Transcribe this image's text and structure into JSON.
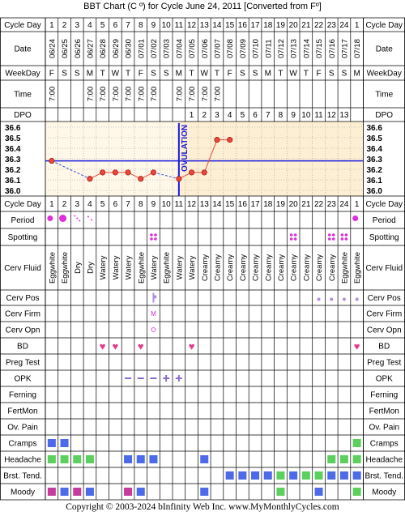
{
  "title": "BBT Chart (C º) for Cycle June 24, 2011  [Converted from Fº]",
  "copyright": "Copyright © 2003-2024 bInfinity Web Inc.     www.MyMonthlyCycles.com",
  "row_labels": {
    "cycle_day": "Cycle Day",
    "date": "Date",
    "weekday": "WeekDay",
    "time": "Time",
    "dpo": "DPO",
    "period": "Period",
    "spotting": "Spotting",
    "cerv_fluid": "Cerv Fluid",
    "cerv_pos": "Cerv Pos",
    "cerv_firm": "Cerv Firm",
    "cerv_opn": "Cerv Opn",
    "bd": "BD",
    "preg_test": "Preg Test",
    "opk": "OPK",
    "ferning": "Ferning",
    "fertmon": "FertMon",
    "ov_pain": "Ov. Pain",
    "cramps": "Cramps",
    "headache": "Headache",
    "brst_tend": "Brst. Tend.",
    "moody": "Moody"
  },
  "cycle_days": [
    "1",
    "2",
    "3",
    "4",
    "5",
    "6",
    "7",
    "8",
    "9",
    "10",
    "11",
    "12",
    "13",
    "14",
    "15",
    "16",
    "17",
    "18",
    "19",
    "20",
    "21",
    "22",
    "23",
    "24",
    "1"
  ],
  "dates": [
    "06/24",
    "06/25",
    "06/26",
    "06/27",
    "06/28",
    "06/29",
    "06/30",
    "07/01",
    "07/02",
    "07/03",
    "07/04",
    "07/05",
    "07/06",
    "07/07",
    "07/08",
    "07/09",
    "07/10",
    "07/11",
    "07/12",
    "07/13",
    "07/14",
    "07/15",
    "07/16",
    "07/17",
    "07/18"
  ],
  "weekdays": [
    "F",
    "S",
    "S",
    "M",
    "T",
    "W",
    "T",
    "F",
    "S",
    "S",
    "M",
    "T",
    "W",
    "T",
    "F",
    "S",
    "S",
    "M",
    "T",
    "W",
    "T",
    "F",
    "S",
    "S",
    "M"
  ],
  "times": [
    "7:00",
    "",
    "",
    "7:00",
    "7:00",
    "7:00",
    "7:00",
    "7:00",
    "7:00",
    "",
    "7:00",
    "7:00",
    "7:00",
    "7:00",
    "",
    "",
    "",
    "",
    "",
    "",
    "",
    "",
    "",
    "",
    ""
  ],
  "dpo": [
    "",
    "",
    "",
    "",
    "",
    "",
    "",
    "",
    "",
    "",
    "",
    "1",
    "2",
    "3",
    "4",
    "5",
    "6",
    "7",
    "8",
    "9",
    "10",
    "11",
    "12",
    "13",
    ""
  ],
  "temp_labels": [
    "36.6",
    "36.5",
    "36.4",
    "36.3",
    "36.2",
    "36.1",
    "36.0"
  ],
  "chart_data": {
    "type": "line",
    "title": "BBT Chart (C º) for Cycle June 24, 2011  [Converted from Fº]",
    "ylim": [
      36.0,
      36.6
    ],
    "coverline": 36.28,
    "ovulation_day": 11,
    "ovulation_label": "OVULATION",
    "series": [
      {
        "values": [
          36.28,
          null,
          null,
          36.11,
          36.17,
          36.17,
          36.17,
          36.11,
          36.17,
          null,
          36.11,
          36.17,
          36.17,
          36.48,
          36.48,
          null,
          null,
          null,
          null,
          null,
          null,
          null,
          null,
          null,
          null
        ]
      }
    ]
  },
  "cerv_fluid": [
    "Eggwhite",
    "Eggwhite",
    "Dry",
    "Dry",
    "Watery",
    "Watery",
    "Watery",
    "Eggwhite",
    "Watery",
    "Eggwhite",
    "Watery",
    "Watery",
    "Creamy",
    "Creamy",
    "Creamy",
    "Creamy",
    "Creamy",
    "Creamy",
    "Creamy",
    "Creamy",
    "Creamy",
    "Creamy",
    "Creamy",
    "Eggwhite",
    "Eggwhite"
  ],
  "period": [
    [
      "circle",
      6
    ],
    [
      "circle",
      8
    ],
    [
      "dots3",
      0
    ],
    [
      "dots2",
      0
    ],
    null,
    null,
    null,
    null,
    null,
    null,
    null,
    null,
    null,
    null,
    null,
    null,
    null,
    null,
    null,
    null,
    null,
    null,
    null,
    null,
    [
      "circle",
      6
    ]
  ],
  "spotting": [
    null,
    null,
    null,
    null,
    null,
    null,
    null,
    null,
    "sp",
    null,
    null,
    null,
    null,
    null,
    null,
    null,
    null,
    null,
    null,
    "sp",
    null,
    null,
    "sp",
    "sp",
    null
  ],
  "cerv_pos": [
    null,
    null,
    null,
    null,
    null,
    null,
    null,
    null,
    "pos",
    null,
    null,
    null,
    null,
    null,
    null,
    null,
    null,
    null,
    null,
    null,
    null,
    "pos",
    "pos",
    "pos",
    "pos"
  ],
  "cerv_firm": [
    null,
    null,
    null,
    null,
    null,
    null,
    null,
    null,
    "M",
    null,
    null,
    null,
    null,
    null,
    null,
    null,
    null,
    null,
    null,
    null,
    null,
    null,
    null,
    null,
    null
  ],
  "cerv_opn": [
    null,
    null,
    null,
    null,
    null,
    null,
    null,
    null,
    "o",
    null,
    null,
    null,
    null,
    null,
    null,
    null,
    null,
    null,
    null,
    null,
    null,
    null,
    null,
    null,
    null
  ],
  "bd": [
    null,
    null,
    null,
    null,
    "h",
    "h",
    null,
    "h",
    null,
    null,
    null,
    "h",
    null,
    null,
    null,
    null,
    null,
    null,
    null,
    null,
    null,
    null,
    null,
    null,
    "h"
  ],
  "opk": [
    null,
    null,
    null,
    null,
    null,
    null,
    "-",
    "-",
    "-",
    "+",
    "+",
    null,
    null,
    null,
    null,
    null,
    null,
    null,
    null,
    null,
    null,
    null,
    null,
    null,
    null
  ],
  "cramps": [
    1,
    2,
    0,
    0,
    0,
    0,
    0,
    0,
    0,
    0,
    0,
    0,
    0,
    0,
    0,
    0,
    0,
    0,
    0,
    0,
    0,
    0,
    0,
    0,
    3
  ],
  "headache": [
    3,
    3,
    3,
    3,
    0,
    0,
    1,
    1,
    1,
    0,
    0,
    0,
    1,
    0,
    0,
    0,
    0,
    0,
    0,
    0,
    0,
    0,
    3,
    3,
    3
  ],
  "brst_tend": [
    0,
    0,
    0,
    0,
    0,
    0,
    0,
    0,
    0,
    0,
    0,
    0,
    0,
    0,
    1,
    1,
    1,
    1,
    3,
    1,
    3,
    3,
    1,
    1,
    1
  ],
  "moody": [
    4,
    1,
    4,
    1,
    0,
    0,
    4,
    1,
    0,
    0,
    0,
    0,
    1,
    0,
    0,
    0,
    0,
    0,
    3,
    0,
    0,
    1,
    0,
    0,
    3
  ],
  "colors": {
    "grid": "#000",
    "dotted": "#999",
    "chartbg": "#fdefd4",
    "line": "#e84a3a",
    "pre_line": "#3355dd",
    "coverline": "#1a1adc",
    "ovline": "#1a1adc",
    "period": "#e02edb",
    "bd": "#e03c8c",
    "opk": "#8a6cd0",
    "sq1": "#4d6be8",
    "sq2": "#47c8e8",
    "sq3": "#5cd05c",
    "sq4": "#c63c9c",
    "pos": "#b090d8"
  }
}
